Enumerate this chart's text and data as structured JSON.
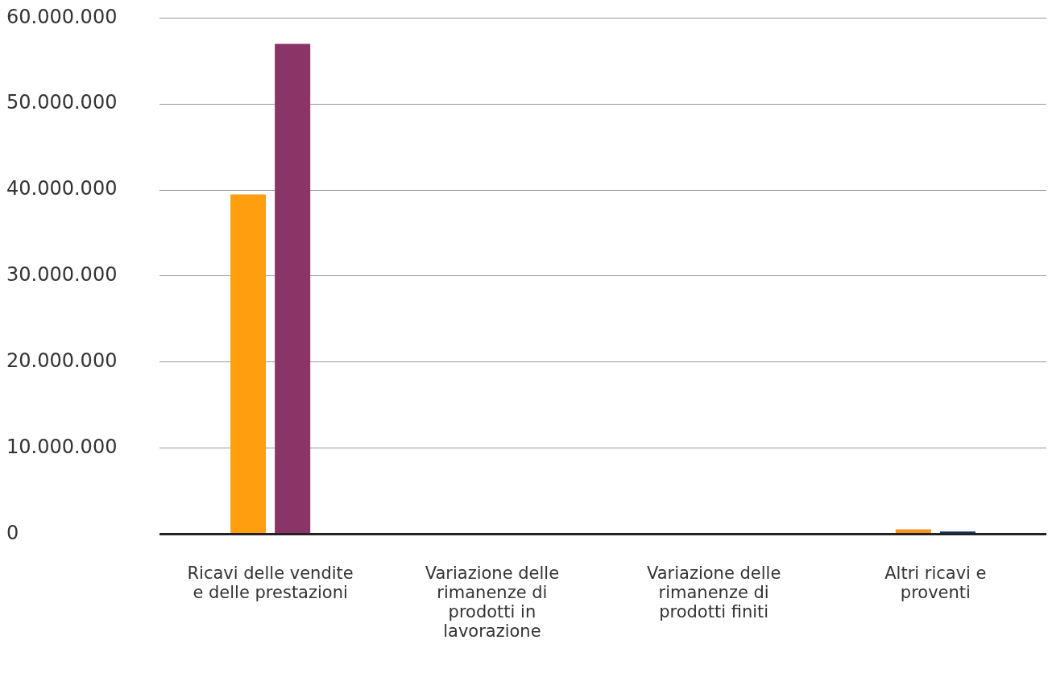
{
  "chart_data": {
    "type": "bar",
    "categories": [
      "Ricavi delle vendite e delle prestazioni",
      "Variazione delle rimanenze di prodotti in lavorazione",
      "Variazione delle rimanenze di prodotti finiti",
      "Altri ricavi e proventi"
    ],
    "series": [
      {
        "colors": [
          "#ff9f10",
          "#ff9f10",
          "#ff9f10",
          "#f7941d"
        ],
        "values": [
          39500000,
          0,
          0,
          550000
        ]
      },
      {
        "colors": [
          "#8b3468",
          "#8b3468",
          "#8b3468",
          "#0d3563"
        ],
        "values": [
          57000000,
          0,
          0,
          300000
        ]
      }
    ],
    "ylim": [
      0,
      60000000
    ],
    "yticks": [
      {
        "value": 0,
        "label": "0"
      },
      {
        "value": 10000000,
        "label": "10.000.000"
      },
      {
        "value": 20000000,
        "label": "20.000.000"
      },
      {
        "value": 30000000,
        "label": "30.000.000"
      },
      {
        "value": 40000000,
        "label": "40.000.000"
      },
      {
        "value": 50000000,
        "label": "50.000.000"
      },
      {
        "value": 60000000,
        "label": "60.000.000"
      }
    ],
    "grid": "y",
    "legend": false
  }
}
